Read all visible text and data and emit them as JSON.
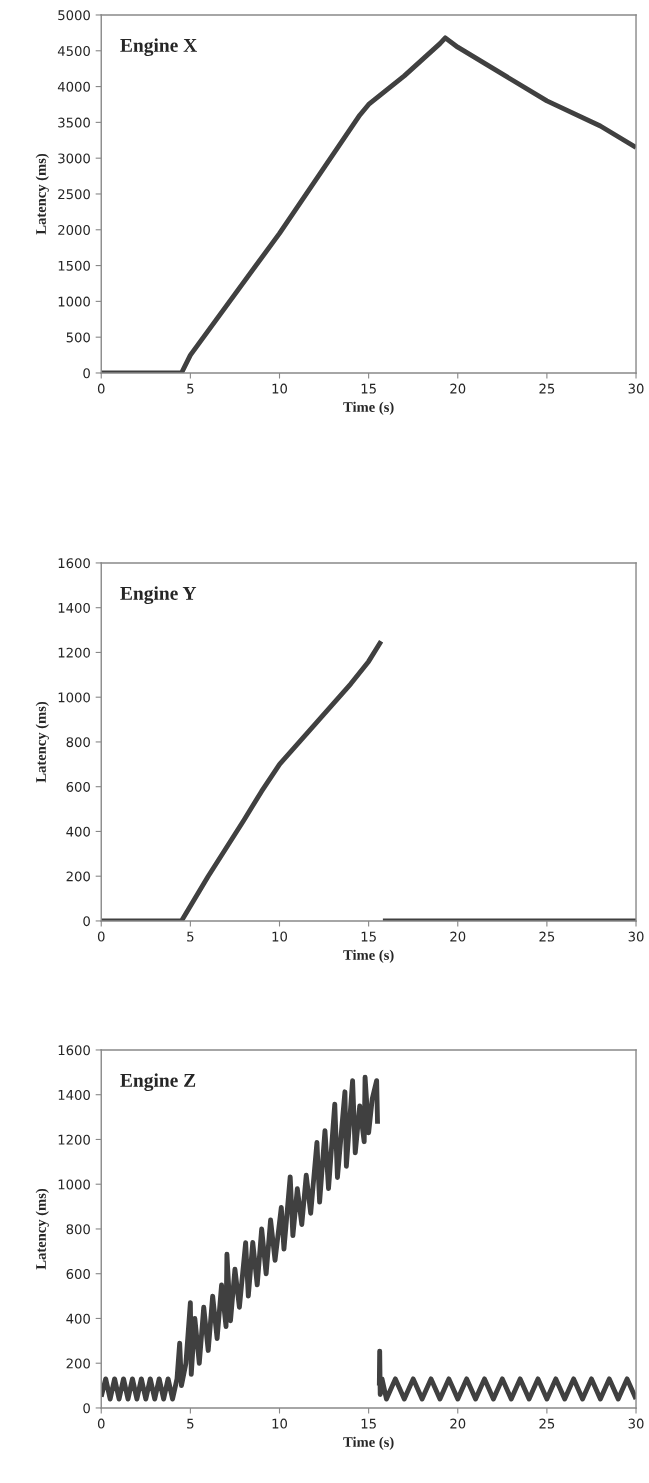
{
  "chart_data": [
    {
      "type": "line",
      "title": "Engine X",
      "xlabel": "Time (s)",
      "ylabel": "Latency (ms)",
      "xlim": [
        0,
        30
      ],
      "ylim": [
        0,
        5000
      ],
      "xticks": [
        0,
        5,
        10,
        15,
        20,
        25,
        30
      ],
      "yticks": [
        0,
        500,
        1000,
        1500,
        2000,
        2500,
        3000,
        3500,
        4000,
        4500,
        5000
      ],
      "series": [
        {
          "color": "#404040",
          "x": [
            0,
            4.5,
            5,
            10,
            14.5,
            15,
            17,
            19,
            19.3,
            20,
            22,
            25,
            28,
            30
          ],
          "values": [
            0,
            0,
            250,
            1950,
            3600,
            3750,
            4150,
            4600,
            4680,
            4550,
            4250,
            3800,
            3450,
            3150
          ]
        }
      ]
    },
    {
      "type": "line",
      "title": "Engine Y",
      "xlabel": "Time (s)",
      "ylabel": "Latency (ms)",
      "xlim": [
        0,
        30
      ],
      "ylim": [
        0,
        1600
      ],
      "xticks": [
        0,
        5,
        10,
        15,
        20,
        25,
        30
      ],
      "yticks": [
        0,
        200,
        400,
        600,
        800,
        1000,
        1200,
        1400,
        1600
      ],
      "series": [
        {
          "color": "#404040",
          "x": [
            0,
            4.5,
            6,
            8,
            9,
            10,
            12,
            14,
            15,
            15.7,
            15.75,
            15.8,
            30
          ],
          "values": [
            0,
            0,
            200,
            450,
            580,
            700,
            880,
            1060,
            1160,
            1250,
            null,
            0,
            0
          ]
        }
      ]
    },
    {
      "type": "line",
      "title": "Engine Z",
      "xlabel": "Time (s)",
      "ylabel": "Latency (ms)",
      "xlim": [
        0,
        30
      ],
      "ylim": [
        0,
        1600
      ],
      "xticks": [
        0,
        5,
        10,
        15,
        20,
        25,
        30
      ],
      "yticks": [
        0,
        200,
        400,
        600,
        800,
        1000,
        1200,
        1400,
        1600
      ],
      "series": [
        {
          "color": "#404040",
          "x": [
            0,
            0.25,
            0.5,
            0.75,
            1,
            1.25,
            1.5,
            1.75,
            2,
            2.25,
            2.5,
            2.75,
            3,
            3.25,
            3.5,
            3.75,
            4,
            4.25,
            4.4,
            4.5,
            4.75,
            5,
            5.05,
            5.25,
            5.5,
            5.75,
            6,
            6.25,
            6.5,
            6.75,
            7,
            7.05,
            7.25,
            7.5,
            7.75,
            8.1,
            8.25,
            8.5,
            8.75,
            9,
            9.25,
            9.5,
            9.75,
            10.1,
            10.25,
            10.6,
            10.75,
            11,
            11.25,
            11.5,
            11.75,
            12.1,
            12.25,
            12.55,
            12.75,
            13.1,
            13.25,
            13.67,
            13.75,
            14.1,
            14.25,
            14.5,
            14.75,
            14.8,
            15,
            15.2,
            15.45,
            15.5,
            15.55,
            15.6,
            15.62,
            15.65,
            15.75,
            16,
            16.5,
            17,
            17.5,
            18,
            18.5,
            19,
            19.5,
            20,
            20.5,
            21,
            21.5,
            22,
            22.5,
            23,
            23.5,
            24,
            24.5,
            25,
            25.5,
            26,
            26.5,
            27,
            27.5,
            28,
            28.5,
            29,
            29.5,
            30
          ],
          "values": [
            50,
            130,
            40,
            130,
            40,
            130,
            40,
            130,
            40,
            130,
            40,
            130,
            40,
            130,
            40,
            130,
            40,
            130,
            290,
            100,
            200,
            470,
            150,
            400,
            200,
            450,
            257,
            500,
            310,
            550,
            364,
            687,
            390,
            620,
            450,
            739,
            500,
            740,
            550,
            800,
            600,
            840,
            660,
            896,
            710,
            1033,
            770,
            980,
            820,
            1040,
            870,
            1187,
            920,
            1239,
            980,
            1358,
            1030,
            1413,
            1080,
            1463,
            1140,
            1350,
            1190,
            1478,
            1230,
            1380,
            1463,
            1270,
            null,
            100,
            254,
            60,
            130,
            40,
            130,
            40,
            130,
            40,
            130,
            40,
            130,
            40,
            130,
            40,
            130,
            40,
            130,
            40,
            130,
            40,
            130,
            40,
            130,
            40,
            130,
            40,
            130,
            40,
            130,
            40,
            130,
            40
          ]
        }
      ]
    }
  ]
}
